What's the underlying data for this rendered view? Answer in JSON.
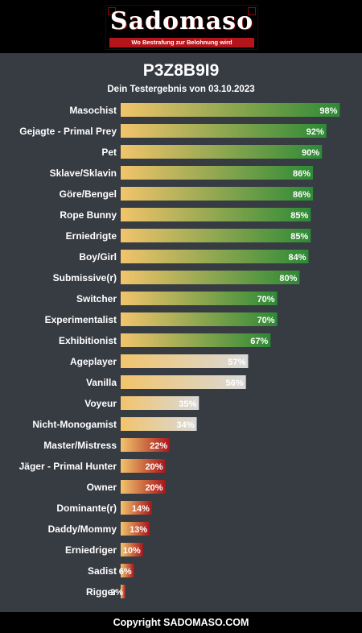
{
  "header": {
    "logo_title": "Sadomaso",
    "logo_subtitle": "Wo Bestrafung zur Belohnung wird"
  },
  "result": {
    "username": "P3Z8B9I9",
    "subtitle": "Dein Testergebnis von 03.10.2023"
  },
  "footer": {
    "copyright": "Copyright SADOMASO.COM"
  },
  "colors": {
    "background": "#373b42",
    "bar_start": "#f2c46b",
    "high_end": "#2d8a36",
    "mid_end": "#d9d9d9",
    "low_end": "#a8161c"
  },
  "chart_data": {
    "type": "bar",
    "orientation": "horizontal",
    "title": "",
    "xlabel": "",
    "ylabel": "",
    "xlim": [
      0,
      100
    ],
    "unit": "%",
    "categories": [
      "Masochist",
      "Gejagte - Primal Prey",
      "Pet",
      "Sklave/Sklavin",
      "Göre/Bengel",
      "Rope Bunny",
      "Erniedrigte",
      "Boy/Girl",
      "Submissive(r)",
      "Switcher",
      "Experimentalist",
      "Exhibitionist",
      "Ageplayer",
      "Vanilla",
      "Voyeur",
      "Nicht-Monogamist",
      "Master/Mistress",
      "Jäger - Primal Hunter",
      "Owner",
      "Dominante(r)",
      "Daddy/Mommy",
      "Erniedriger",
      "Sadist",
      "Rigger"
    ],
    "values": [
      98,
      92,
      90,
      86,
      86,
      85,
      85,
      84,
      80,
      70,
      70,
      67,
      57,
      56,
      35,
      34,
      22,
      20,
      20,
      14,
      13,
      10,
      6,
      2
    ],
    "value_labels": [
      "98%",
      "92%",
      "90%",
      "86%",
      "86%",
      "85%",
      "85%",
      "84%",
      "80%",
      "70%",
      "70%",
      "67%",
      "57%",
      "56%",
      "35%",
      "34%",
      "22%",
      "20%",
      "20%",
      "14%",
      "13%",
      "10%",
      "6%",
      "2%"
    ],
    "grid": false,
    "legend": "none"
  }
}
